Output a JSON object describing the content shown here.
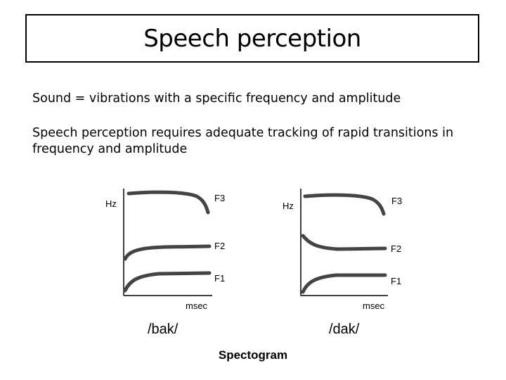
{
  "slide": {
    "title": "Speech perception",
    "line1": "Sound = vibrations with a specific frequency and amplitude",
    "line2": "Speech perception requires adequate tracking of rapid transitions in frequency and amplitude",
    "caption": "Spectogram"
  },
  "left_plot": {
    "y_label": "Hz",
    "x_label": "msec",
    "syllable": "/bak/",
    "formants": [
      "F3",
      "F2",
      "F1"
    ]
  },
  "right_plot": {
    "y_label": "Hz",
    "x_label": "msec",
    "syllable": "/dak/",
    "formants": [
      "F3",
      "F2",
      "F1"
    ]
  },
  "colors": {
    "ink": "#000000",
    "trace": "#444444",
    "background": "#ffffff"
  }
}
